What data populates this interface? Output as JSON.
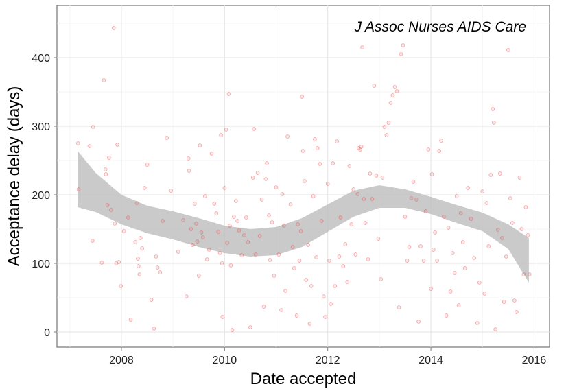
{
  "chart_data": {
    "type": "scatter",
    "title": "",
    "annotation": "J Assoc Nurses AIDS Care",
    "xlabel": "Date accepted",
    "ylabel": "Acceptance delay (days)",
    "x_ticks": [
      "2008",
      "2010",
      "2012",
      "2014",
      "2016"
    ],
    "x_tick_years": [
      2008,
      2010,
      2012,
      2014,
      2016
    ],
    "y_ticks": [
      0,
      100,
      200,
      300,
      400
    ],
    "xlim": [
      2006.75,
      2016.3
    ],
    "ylim": [
      -22,
      476
    ],
    "grid": true,
    "legend": "none",
    "point_color": "#e8474c",
    "band_color": "#bdbdbd",
    "smooth": {
      "x": [
        2007.15,
        2007.5,
        2008.0,
        2008.5,
        2009.0,
        2009.5,
        2010.0,
        2010.5,
        2011.0,
        2011.5,
        2012.0,
        2012.5,
        2013.0,
        2013.5,
        2014.0,
        2014.5,
        2015.0,
        2015.5,
        2015.9
      ],
      "upper": [
        264,
        232,
        200,
        184,
        176,
        166,
        155,
        150,
        153,
        166,
        186,
        206,
        214,
        208,
        197,
        185,
        174,
        157,
        137
      ],
      "lower": [
        182,
        175,
        157,
        144,
        135,
        124,
        115,
        110,
        112,
        124,
        146,
        168,
        181,
        181,
        172,
        159,
        147,
        121,
        72
      ]
    },
    "points": [
      [
        2007.16,
        275
      ],
      [
        2007.17,
        208
      ],
      [
        2007.38,
        271
      ],
      [
        2007.45,
        299
      ],
      [
        2007.44,
        133
      ],
      [
        2007.62,
        101
      ],
      [
        2007.66,
        367
      ],
      [
        2007.69,
        237
      ],
      [
        2007.7,
        230
      ],
      [
        2007.73,
        185
      ],
      [
        2007.76,
        254
      ],
      [
        2007.8,
        178
      ],
      [
        2007.85,
        443
      ],
      [
        2007.87,
        158
      ],
      [
        2007.9,
        100
      ],
      [
        2007.92,
        273
      ],
      [
        2007.95,
        102
      ],
      [
        2007.99,
        67
      ],
      [
        2008.05,
        147
      ],
      [
        2008.13,
        167
      ],
      [
        2008.18,
        18
      ],
      [
        2008.27,
        131
      ],
      [
        2008.3,
        188
      ],
      [
        2008.32,
        107
      ],
      [
        2008.33,
        96
      ],
      [
        2008.35,
        84
      ],
      [
        2008.37,
        137
      ],
      [
        2008.4,
        122
      ],
      [
        2008.45,
        210
      ],
      [
        2008.5,
        244
      ],
      [
        2008.58,
        47
      ],
      [
        2008.63,
        5
      ],
      [
        2008.67,
        110
      ],
      [
        2008.7,
        94
      ],
      [
        2008.75,
        87
      ],
      [
        2008.8,
        162
      ],
      [
        2008.88,
        283
      ],
      [
        2008.96,
        206
      ],
      [
        2009.1,
        117
      ],
      [
        2009.2,
        163
      ],
      [
        2009.26,
        52
      ],
      [
        2009.3,
        253
      ],
      [
        2009.31,
        235
      ],
      [
        2009.35,
        150
      ],
      [
        2009.38,
        127
      ],
      [
        2009.42,
        187
      ],
      [
        2009.45,
        158
      ],
      [
        2009.47,
        132
      ],
      [
        2009.5,
        82
      ],
      [
        2009.52,
        272
      ],
      [
        2009.55,
        145
      ],
      [
        2009.58,
        138
      ],
      [
        2009.62,
        198
      ],
      [
        2009.66,
        106
      ],
      [
        2009.7,
        120
      ],
      [
        2009.75,
        260
      ],
      [
        2009.8,
        187
      ],
      [
        2009.84,
        173
      ],
      [
        2009.88,
        146
      ],
      [
        2009.91,
        115
      ],
      [
        2009.93,
        287
      ],
      [
        2009.95,
        100
      ],
      [
        2009.96,
        22
      ],
      [
        2010.0,
        210
      ],
      [
        2010.03,
        295
      ],
      [
        2010.05,
        130
      ],
      [
        2010.08,
        347
      ],
      [
        2010.1,
        155
      ],
      [
        2010.12,
        97
      ],
      [
        2010.15,
        3
      ],
      [
        2010.18,
        168
      ],
      [
        2010.22,
        191
      ],
      [
        2010.25,
        162
      ],
      [
        2010.28,
        148
      ],
      [
        2010.33,
        112
      ],
      [
        2010.38,
        141
      ],
      [
        2010.42,
        167
      ],
      [
        2010.45,
        131
      ],
      [
        2010.5,
        7
      ],
      [
        2010.55,
        225
      ],
      [
        2010.57,
        296
      ],
      [
        2010.6,
        113
      ],
      [
        2010.64,
        232
      ],
      [
        2010.68,
        140
      ],
      [
        2010.72,
        193
      ],
      [
        2010.76,
        37
      ],
      [
        2010.8,
        223
      ],
      [
        2010.82,
        246
      ],
      [
        2010.86,
        170
      ],
      [
        2010.88,
        105
      ],
      [
        2010.92,
        160
      ],
      [
        2010.96,
        82
      ],
      [
        2011.0,
        211
      ],
      [
        2011.05,
        113
      ],
      [
        2011.1,
        32
      ],
      [
        2011.12,
        201
      ],
      [
        2011.15,
        155
      ],
      [
        2011.18,
        60
      ],
      [
        2011.22,
        285
      ],
      [
        2011.28,
        186
      ],
      [
        2011.32,
        124
      ],
      [
        2011.35,
        93
      ],
      [
        2011.4,
        24
      ],
      [
        2011.42,
        157
      ],
      [
        2011.45,
        104
      ],
      [
        2011.48,
        147
      ],
      [
        2011.5,
        343
      ],
      [
        2011.52,
        264
      ],
      [
        2011.55,
        220
      ],
      [
        2011.58,
        76
      ],
      [
        2011.62,
        127
      ],
      [
        2011.65,
        12
      ],
      [
        2011.68,
        67
      ],
      [
        2011.72,
        198
      ],
      [
        2011.75,
        281
      ],
      [
        2011.78,
        109
      ],
      [
        2011.8,
        268
      ],
      [
        2011.85,
        245
      ],
      [
        2011.88,
        162
      ],
      [
        2011.92,
        52
      ],
      [
        2011.95,
        22
      ],
      [
        2012.0,
        216
      ],
      [
        2012.03,
        104
      ],
      [
        2012.06,
        41
      ],
      [
        2012.1,
        246
      ],
      [
        2012.14,
        67
      ],
      [
        2012.18,
        278
      ],
      [
        2012.22,
        110
      ],
      [
        2012.25,
        167
      ],
      [
        2012.3,
        96
      ],
      [
        2012.34,
        128
      ],
      [
        2012.38,
        73
      ],
      [
        2012.42,
        242
      ],
      [
        2012.46,
        157
      ],
      [
        2012.5,
        208
      ],
      [
        2012.54,
        113
      ],
      [
        2012.58,
        201
      ],
      [
        2012.6,
        268
      ],
      [
        2012.63,
        266
      ],
      [
        2012.65,
        270
      ],
      [
        2012.67,
        415
      ],
      [
        2012.7,
        194
      ],
      [
        2012.73,
        159
      ],
      [
        2012.78,
        106
      ],
      [
        2012.82,
        231
      ],
      [
        2012.86,
        194
      ],
      [
        2012.9,
        359
      ],
      [
        2012.94,
        228
      ],
      [
        2012.98,
        136
      ],
      [
        2013.03,
        77
      ],
      [
        2013.06,
        225
      ],
      [
        2013.1,
        299
      ],
      [
        2013.14,
        287
      ],
      [
        2013.18,
        305
      ],
      [
        2013.22,
        334
      ],
      [
        2013.26,
        345
      ],
      [
        2013.3,
        357
      ],
      [
        2013.34,
        351
      ],
      [
        2013.38,
        36
      ],
      [
        2013.42,
        405
      ],
      [
        2013.46,
        418
      ],
      [
        2013.5,
        168
      ],
      [
        2013.54,
        104
      ],
      [
        2013.58,
        124
      ],
      [
        2013.62,
        195
      ],
      [
        2013.66,
        219
      ],
      [
        2013.72,
        193
      ],
      [
        2013.76,
        15
      ],
      [
        2013.8,
        125
      ],
      [
        2013.86,
        104
      ],
      [
        2013.9,
        176
      ],
      [
        2013.95,
        266
      ],
      [
        2014.0,
        63
      ],
      [
        2014.02,
        230
      ],
      [
        2014.05,
        120
      ],
      [
        2014.08,
        145
      ],
      [
        2014.12,
        104
      ],
      [
        2014.16,
        264
      ],
      [
        2014.2,
        279
      ],
      [
        2014.25,
        168
      ],
      [
        2014.3,
        24
      ],
      [
        2014.34,
        152
      ],
      [
        2014.38,
        59
      ],
      [
        2014.42,
        115
      ],
      [
        2014.46,
        86
      ],
      [
        2014.5,
        198
      ],
      [
        2014.54,
        39
      ],
      [
        2014.58,
        173
      ],
      [
        2014.62,
        131
      ],
      [
        2014.66,
        93
      ],
      [
        2014.72,
        210
      ],
      [
        2014.78,
        165
      ],
      [
        2014.84,
        108
      ],
      [
        2014.9,
        13
      ],
      [
        2014.94,
        72
      ],
      [
        2015.0,
        205
      ],
      [
        2015.04,
        56
      ],
      [
        2015.08,
        188
      ],
      [
        2015.12,
        125
      ],
      [
        2015.16,
        229
      ],
      [
        2015.2,
        325
      ],
      [
        2015.22,
        305
      ],
      [
        2015.25,
        4
      ],
      [
        2015.3,
        149
      ],
      [
        2015.34,
        231
      ],
      [
        2015.38,
        137
      ],
      [
        2015.42,
        44
      ],
      [
        2015.46,
        110
      ],
      [
        2015.5,
        411
      ],
      [
        2015.54,
        195
      ],
      [
        2015.58,
        159
      ],
      [
        2015.62,
        46
      ],
      [
        2015.66,
        29
      ],
      [
        2015.72,
        225
      ],
      [
        2015.76,
        150
      ],
      [
        2015.8,
        84
      ],
      [
        2015.84,
        182
      ],
      [
        2015.88,
        141
      ],
      [
        2015.91,
        84
      ]
    ]
  }
}
